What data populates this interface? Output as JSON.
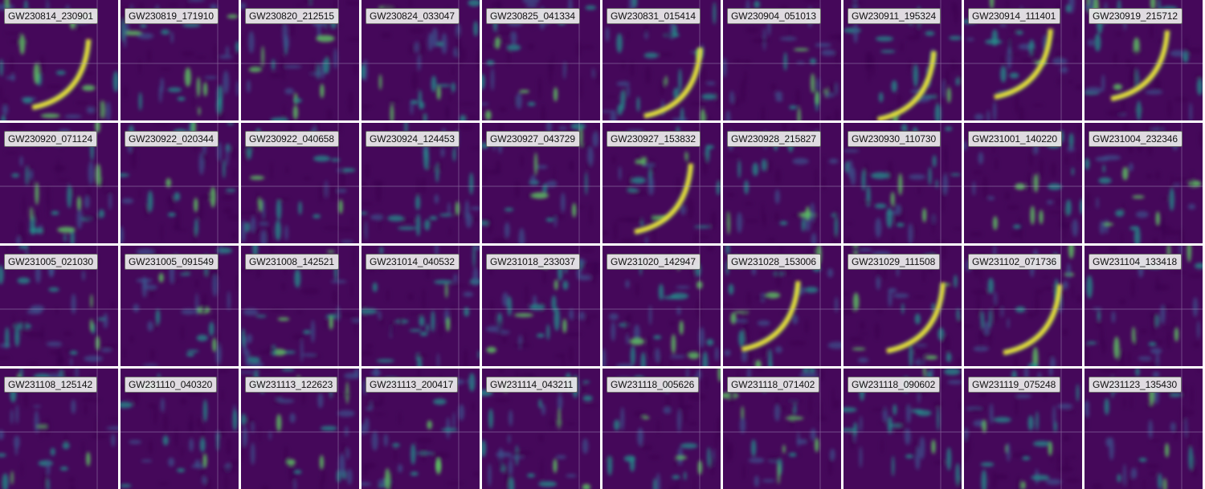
{
  "colormap": {
    "background": "#45085a",
    "dark": "#3a0350",
    "mid": "#3b528b",
    "teal": "#21918c",
    "green": "#5ec962",
    "yellow": "#fde725",
    "gridline": "#b8aecc"
  },
  "events": [
    [
      "GW230814_230901",
      "GW230819_171910",
      "GW230820_212515",
      "GW230824_033047",
      "GW230825_041334",
      "GW230831_015414",
      "GW230904_051013",
      "GW230911_195324",
      "GW230914_111401",
      "GW230919_215712"
    ],
    [
      "GW230920_071124",
      "GW230922_020344",
      "GW230922_040658",
      "GW230924_124453",
      "GW230927_043729",
      "GW230927_153832",
      "GW230928_215827",
      "GW230930_110730",
      "GW231001_140220",
      "GW231004_232346"
    ],
    [
      "GW231005_021030",
      "GW231005_091549",
      "GW231008_142521",
      "GW231014_040532",
      "GW231018_233037",
      "GW231020_142947",
      "GW231028_153006",
      "GW231029_111508",
      "GW231102_071736",
      "GW231104_133418"
    ],
    [
      "GW231108_125142",
      "GW231110_040320",
      "GW231113_122623",
      "GW231113_200417",
      "GW231114_043211",
      "GW231118_005626",
      "GW231118_071402",
      "GW231118_090602",
      "GW231119_075248",
      "GW231123_135430"
    ]
  ]
}
